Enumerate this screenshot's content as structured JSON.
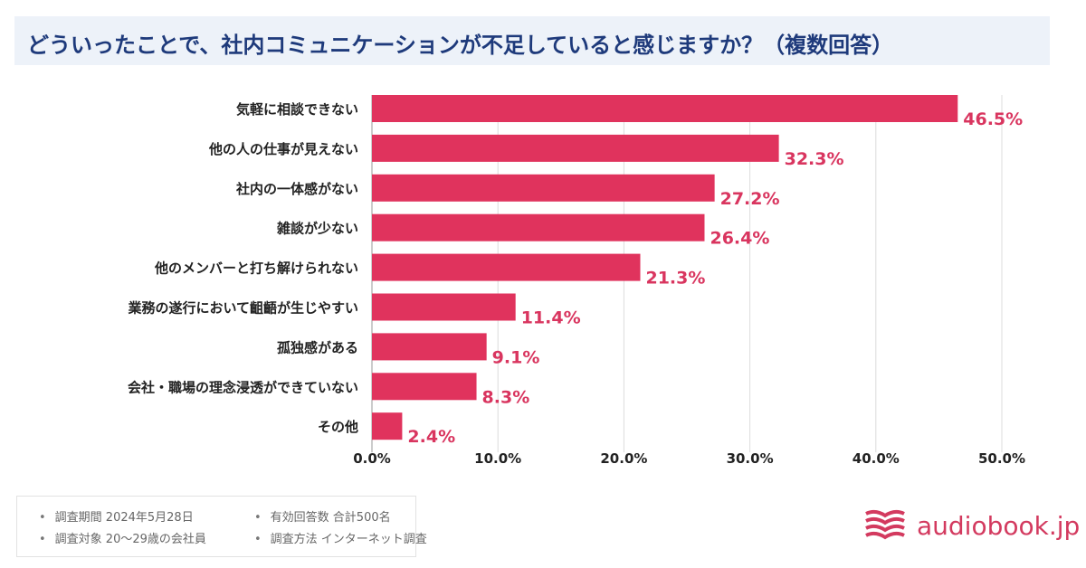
{
  "title": "どういったことで、社内コミュニケーションが不足していると感じますか？（複数回答）",
  "chart_data": {
    "type": "bar",
    "orientation": "horizontal",
    "categories": [
      "気軽に相談できない",
      "他の人の仕事が見えない",
      "社内の一体感がない",
      "雑談が少ない",
      "他のメンバーと打ち解けられない",
      "業務の遂行において齟齬が生じやすい",
      "孤独感がある",
      "会社・職場の理念浸透ができていない",
      "その他"
    ],
    "values": [
      46.5,
      32.3,
      27.2,
      26.4,
      21.3,
      11.4,
      9.1,
      8.3,
      2.4
    ],
    "value_labels": [
      "46.5%",
      "32.3%",
      "27.2%",
      "26.4%",
      "21.3%",
      "11.4%",
      "9.1%",
      "8.3%",
      "2.4%"
    ],
    "xlim": [
      0,
      50
    ],
    "ticks": [
      "0.0%",
      "10.0%",
      "20.0%",
      "30.0%",
      "40.0%",
      "50.0%"
    ],
    "tick_values": [
      0,
      10,
      20,
      30,
      40,
      50
    ],
    "grid": true,
    "bar_color": "#e0335d",
    "label_color": "#d9355f"
  },
  "footer": {
    "items": [
      "調査期間 2024年5月28日",
      "調査対象 20〜29歳の会社員",
      "有効回答数 合計500名",
      "調査方法 インターネット調査"
    ]
  },
  "logo": {
    "text": "audiobook.jp",
    "color": "#d33a5f"
  }
}
